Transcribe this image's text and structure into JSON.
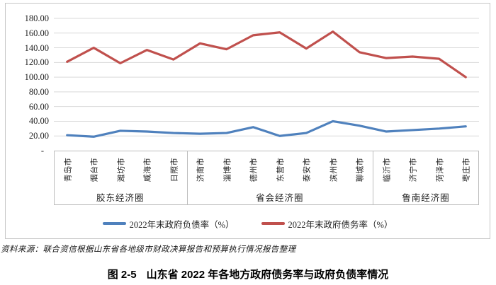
{
  "chart_data": {
    "type": "line",
    "title": "",
    "xlabel": "",
    "ylabel": "",
    "ylim": [
      0,
      180
    ],
    "ytick_step": 20,
    "grid": true,
    "legend_position": "bottom",
    "yticks": [
      {
        "value": 180,
        "label": "180.00"
      },
      {
        "value": 160,
        "label": "160.00"
      },
      {
        "value": 140,
        "label": "140.00"
      },
      {
        "value": 120,
        "label": "120.00"
      },
      {
        "value": 100,
        "label": "100.00"
      },
      {
        "value": 80,
        "label": "80.00"
      },
      {
        "value": 60,
        "label": "60.00"
      },
      {
        "value": 40,
        "label": "40.00"
      },
      {
        "value": 20,
        "label": "20.00"
      },
      {
        "value": 0,
        "label": "-"
      }
    ],
    "categories": [
      "青岛市",
      "烟台市",
      "潍坊市",
      "威海市",
      "日照市",
      "济南市",
      "淄博市",
      "德州市",
      "东营市",
      "泰安市",
      "滨州市",
      "聊城市",
      "临沂市",
      "济宁市",
      "菏泽市",
      "枣庄市"
    ],
    "groups": [
      {
        "label": "胶东经济圈",
        "span": 5
      },
      {
        "label": "省会经济圈",
        "span": 7
      },
      {
        "label": "鲁南经济圈",
        "span": 4
      }
    ],
    "series": [
      {
        "name": "2022年末政府负债率（%）",
        "color": "#4F81BD",
        "values": [
          21,
          19,
          27,
          26,
          24,
          23,
          24,
          32,
          20,
          24,
          40,
          34,
          26,
          28,
          30,
          33
        ]
      },
      {
        "name": "2022年末政府债务率（%）",
        "color": "#C0504D",
        "values": [
          121,
          140,
          119,
          137,
          124,
          146,
          138,
          157,
          161,
          139,
          162,
          134,
          126,
          128,
          125,
          100
        ]
      }
    ]
  },
  "colors": {
    "gridline": "#d9d9d9",
    "axis_border": "#bdbdbd",
    "frame_border": "#c6c6c6"
  },
  "source_note": "资料来源：联合资信根据山东省各地级市财政决算报告和预算执行情况报告整理",
  "caption": {
    "label": "图 2-5",
    "title": "山东省 2022 年各地方政府债务率与政府负债率情况"
  }
}
